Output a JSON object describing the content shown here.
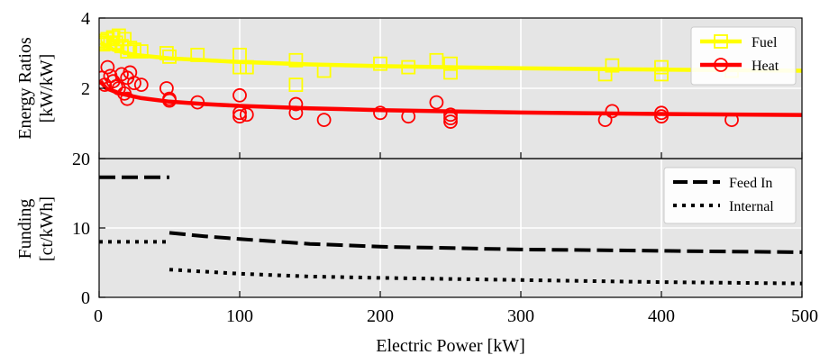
{
  "chart_data": [
    {
      "type": "scatter",
      "ylabel": [
        "Energy Ratios",
        "[kW/kW]"
      ],
      "xlim": [
        0,
        500
      ],
      "ylim": [
        0,
        4
      ],
      "yticks": [
        2,
        4
      ],
      "grid": true,
      "legend_position": "top-right",
      "series": [
        {
          "name": "Fuel",
          "color": "#ffff00",
          "marker": "square",
          "points": [
            {
              "x": 2,
              "y": 3.35
            },
            {
              "x": 3,
              "y": 3.25
            },
            {
              "x": 4,
              "y": 3.3
            },
            {
              "x": 6,
              "y": 3.4
            },
            {
              "x": 8,
              "y": 3.28
            },
            {
              "x": 10,
              "y": 3.45
            },
            {
              "x": 12,
              "y": 3.3
            },
            {
              "x": 14,
              "y": 3.5
            },
            {
              "x": 16,
              "y": 3.2
            },
            {
              "x": 18,
              "y": 3.4
            },
            {
              "x": 20,
              "y": 3.05
            },
            {
              "x": 22,
              "y": 3.15
            },
            {
              "x": 25,
              "y": 3.1
            },
            {
              "x": 30,
              "y": 3.05
            },
            {
              "x": 48,
              "y": 3.0
            },
            {
              "x": 50,
              "y": 2.9
            },
            {
              "x": 70,
              "y": 2.95
            },
            {
              "x": 100,
              "y": 2.6
            },
            {
              "x": 100,
              "y": 2.95
            },
            {
              "x": 105,
              "y": 2.6
            },
            {
              "x": 140,
              "y": 2.8
            },
            {
              "x": 140,
              "y": 2.1
            },
            {
              "x": 160,
              "y": 2.5
            },
            {
              "x": 200,
              "y": 2.7
            },
            {
              "x": 220,
              "y": 2.6
            },
            {
              "x": 240,
              "y": 2.8
            },
            {
              "x": 250,
              "y": 2.45
            },
            {
              "x": 250,
              "y": 2.7
            },
            {
              "x": 360,
              "y": 2.4
            },
            {
              "x": 365,
              "y": 2.65
            },
            {
              "x": 400,
              "y": 2.4
            },
            {
              "x": 400,
              "y": 2.6
            },
            {
              "x": 450,
              "y": 2.5
            }
          ],
          "fit": [
            {
              "x": 1,
              "y": 3.3
            },
            {
              "x": 10,
              "y": 3.1
            },
            {
              "x": 25,
              "y": 2.95
            },
            {
              "x": 50,
              "y": 2.85
            },
            {
              "x": 100,
              "y": 2.75
            },
            {
              "x": 150,
              "y": 2.68
            },
            {
              "x": 200,
              "y": 2.63
            },
            {
              "x": 300,
              "y": 2.57
            },
            {
              "x": 400,
              "y": 2.53
            },
            {
              "x": 500,
              "y": 2.5
            }
          ]
        },
        {
          "name": "Heat",
          "color": "#ff0000",
          "marker": "circle",
          "points": [
            {
              "x": 2,
              "y": 2.3
            },
            {
              "x": 4,
              "y": 2.1
            },
            {
              "x": 6,
              "y": 2.6
            },
            {
              "x": 8,
              "y": 2.35
            },
            {
              "x": 10,
              "y": 2.2
            },
            {
              "x": 12,
              "y": 2.05
            },
            {
              "x": 14,
              "y": 2.0
            },
            {
              "x": 16,
              "y": 2.4
            },
            {
              "x": 18,
              "y": 1.85
            },
            {
              "x": 20,
              "y": 1.7
            },
            {
              "x": 20,
              "y": 2.3
            },
            {
              "x": 22,
              "y": 2.45
            },
            {
              "x": 25,
              "y": 2.15
            },
            {
              "x": 30,
              "y": 2.1
            },
            {
              "x": 48,
              "y": 2.0
            },
            {
              "x": 50,
              "y": 1.7
            },
            {
              "x": 50,
              "y": 1.65
            },
            {
              "x": 70,
              "y": 1.6
            },
            {
              "x": 100,
              "y": 1.8
            },
            {
              "x": 100,
              "y": 1.3
            },
            {
              "x": 100,
              "y": 1.2
            },
            {
              "x": 105,
              "y": 1.25
            },
            {
              "x": 140,
              "y": 1.55
            },
            {
              "x": 140,
              "y": 1.3
            },
            {
              "x": 160,
              "y": 1.1
            },
            {
              "x": 200,
              "y": 1.3
            },
            {
              "x": 220,
              "y": 1.2
            },
            {
              "x": 240,
              "y": 1.6
            },
            {
              "x": 250,
              "y": 1.25
            },
            {
              "x": 250,
              "y": 1.15
            },
            {
              "x": 250,
              "y": 1.05
            },
            {
              "x": 360,
              "y": 1.1
            },
            {
              "x": 365,
              "y": 1.35
            },
            {
              "x": 400,
              "y": 1.2
            },
            {
              "x": 400,
              "y": 1.3
            },
            {
              "x": 450,
              "y": 1.1
            }
          ],
          "fit": [
            {
              "x": 1,
              "y": 2.2
            },
            {
              "x": 5,
              "y": 2.0
            },
            {
              "x": 15,
              "y": 1.85
            },
            {
              "x": 30,
              "y": 1.72
            },
            {
              "x": 50,
              "y": 1.62
            },
            {
              "x": 75,
              "y": 1.55
            },
            {
              "x": 100,
              "y": 1.5
            },
            {
              "x": 150,
              "y": 1.43
            },
            {
              "x": 200,
              "y": 1.38
            },
            {
              "x": 300,
              "y": 1.31
            },
            {
              "x": 400,
              "y": 1.27
            },
            {
              "x": 500,
              "y": 1.24
            }
          ]
        }
      ]
    },
    {
      "type": "line",
      "xlabel": "Electric Power [kW]",
      "ylabel": [
        "Funding",
        "[ct/kWh]"
      ],
      "xlim": [
        0,
        500
      ],
      "ylim": [
        0,
        20
      ],
      "xticks": [
        0,
        100,
        200,
        300,
        400,
        500
      ],
      "yticks": [
        0,
        10,
        20
      ],
      "grid": true,
      "legend_position": "top-right",
      "series": [
        {
          "name": "Feed In",
          "color": "#000000",
          "style": "dashed",
          "segments": [
            [
              {
                "x": 0,
                "y": 17.3
              },
              {
                "x": 50,
                "y": 17.3
              }
            ],
            [
              {
                "x": 50,
                "y": 9.3
              },
              {
                "x": 75,
                "y": 8.8
              },
              {
                "x": 100,
                "y": 8.4
              },
              {
                "x": 150,
                "y": 7.7
              },
              {
                "x": 200,
                "y": 7.3
              },
              {
                "x": 250,
                "y": 7.1
              },
              {
                "x": 300,
                "y": 6.9
              },
              {
                "x": 350,
                "y": 6.8
              },
              {
                "x": 400,
                "y": 6.7
              },
              {
                "x": 450,
                "y": 6.6
              },
              {
                "x": 500,
                "y": 6.5
              }
            ]
          ]
        },
        {
          "name": "Internal",
          "color": "#000000",
          "style": "dotted",
          "segments": [
            [
              {
                "x": 0,
                "y": 8.0
              },
              {
                "x": 50,
                "y": 8.0
              }
            ],
            [
              {
                "x": 50,
                "y": 4.0
              },
              {
                "x": 100,
                "y": 3.4
              },
              {
                "x": 150,
                "y": 3.0
              },
              {
                "x": 200,
                "y": 2.8
              },
              {
                "x": 300,
                "y": 2.5
              },
              {
                "x": 400,
                "y": 2.2
              },
              {
                "x": 500,
                "y": 2.0
              }
            ]
          ]
        }
      ]
    }
  ]
}
